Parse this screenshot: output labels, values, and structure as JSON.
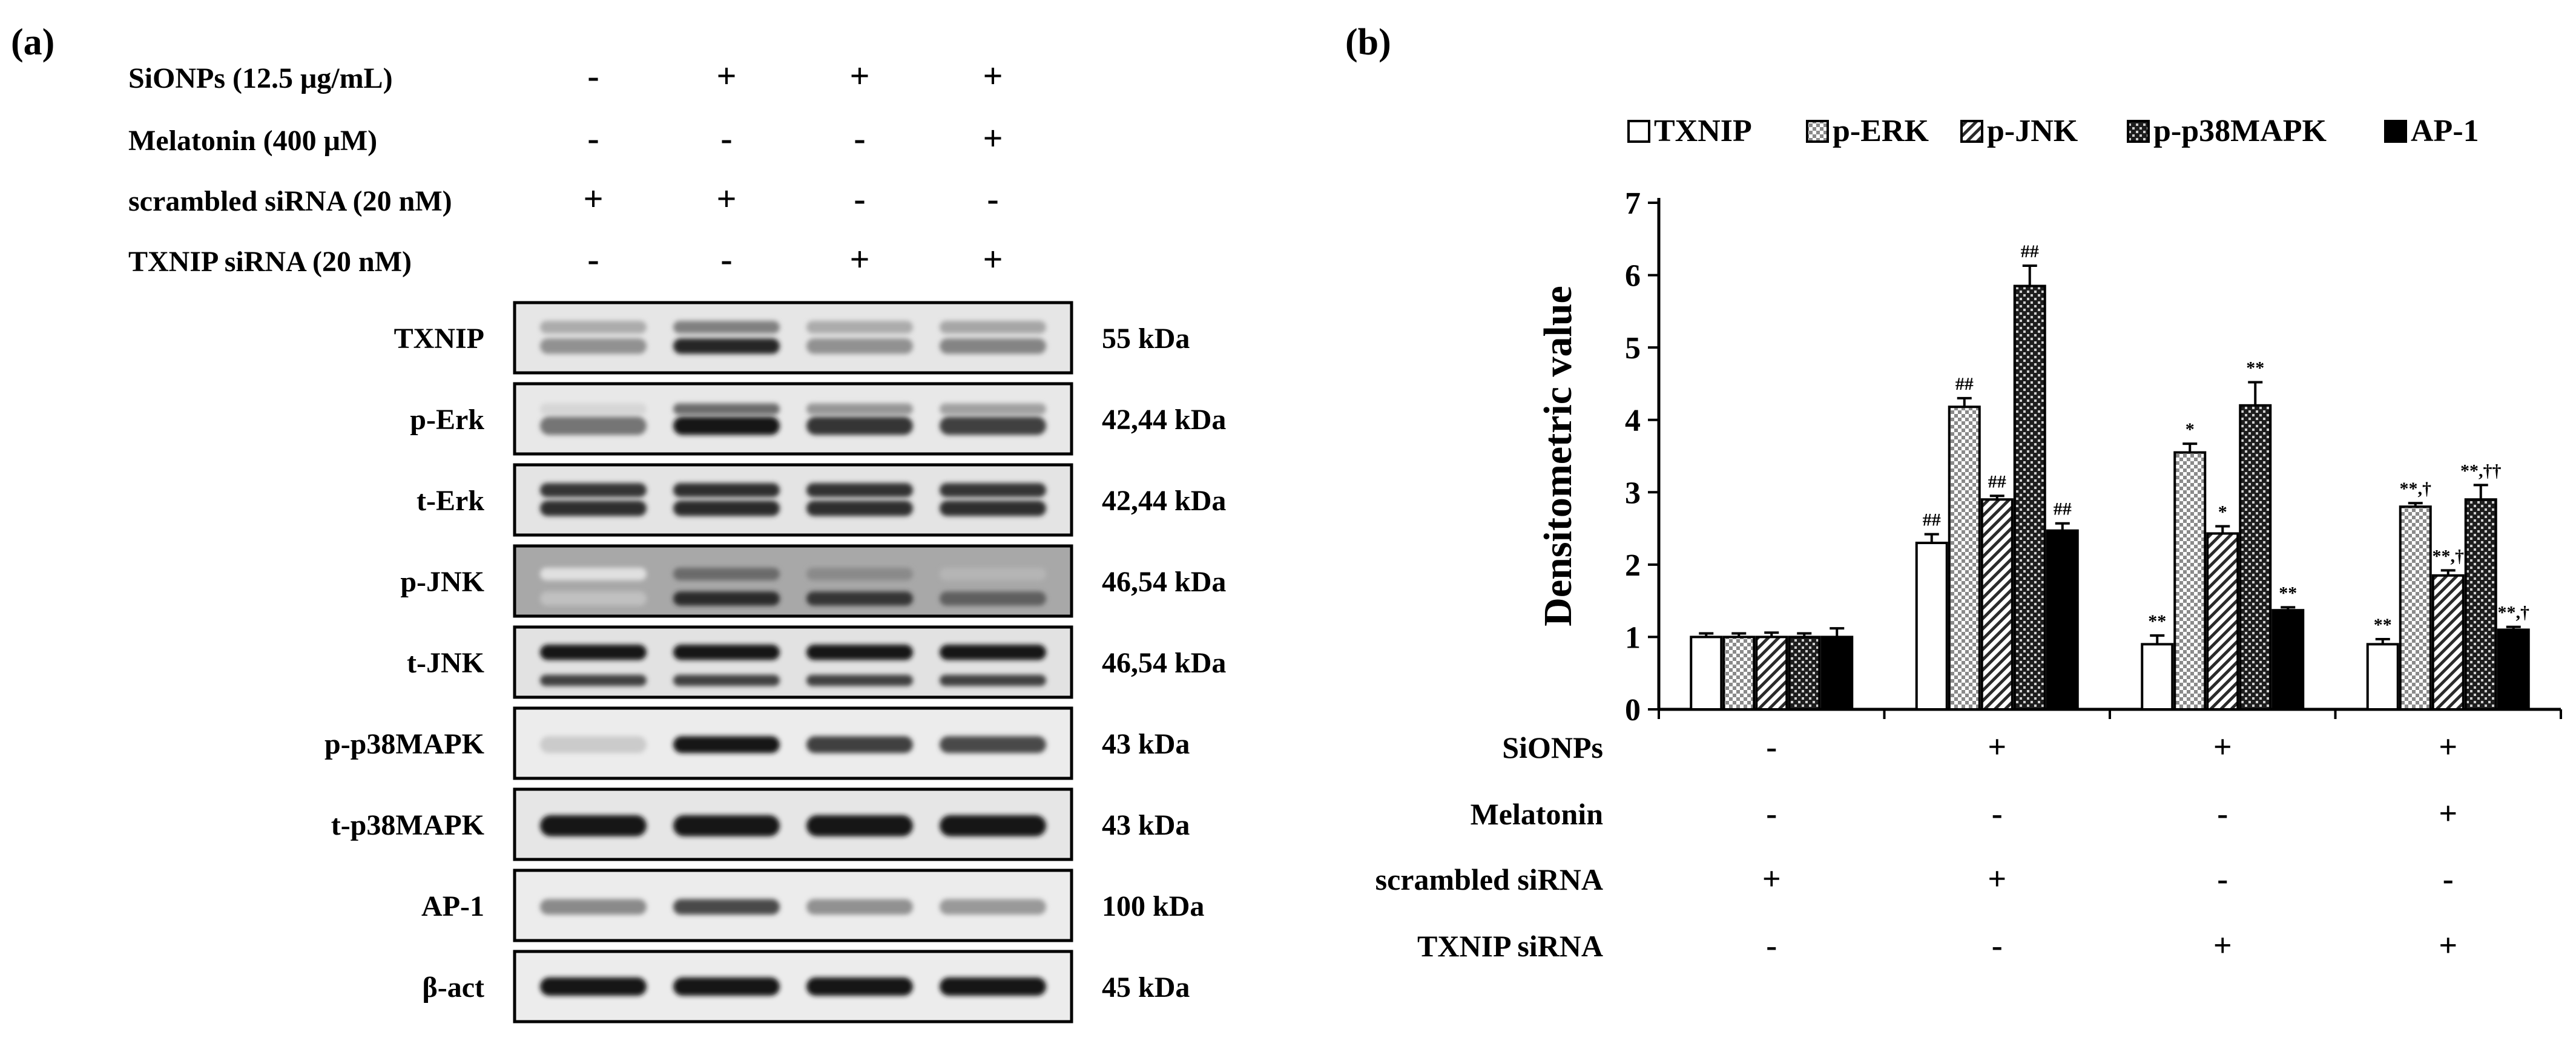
{
  "panel_a": {
    "label": "(a)",
    "conditions": [
      {
        "name": "SiONPs (12.5 μg/mL)",
        "values": [
          "-",
          "+",
          "+",
          "+"
        ]
      },
      {
        "name": "Melatonin (400 μM)",
        "values": [
          "-",
          "-",
          "-",
          "+"
        ]
      },
      {
        "name": "scrambled siRNA (20 nM)",
        "values": [
          "+",
          "+",
          "-",
          "-"
        ]
      },
      {
        "name": "TXNIP siRNA (20 nM)",
        "values": [
          "-",
          "-",
          "+",
          "+"
        ]
      }
    ],
    "blots": [
      {
        "name": "TXNIP",
        "size": "55 kDa",
        "bg": "#e6e6e6",
        "bands": [
          {
            "y": 0.35,
            "i": [
              0.3,
              0.5,
              0.3,
              0.32
            ],
            "w": 0.18
          },
          {
            "y": 0.62,
            "i": [
              0.42,
              0.92,
              0.42,
              0.48
            ],
            "w": 0.22
          }
        ]
      },
      {
        "name": "p-Erk",
        "size": "42,44 kDa",
        "bg": "#e8e8e8",
        "bands": [
          {
            "y": 0.36,
            "i": [
              0.1,
              0.6,
              0.4,
              0.35
            ],
            "w": 0.16
          },
          {
            "y": 0.6,
            "i": [
              0.55,
              1.0,
              0.85,
              0.8
            ],
            "w": 0.26
          }
        ]
      },
      {
        "name": "t-Erk",
        "size": "42,44 kDa",
        "bg": "#e4e4e4",
        "bands": [
          {
            "y": 0.36,
            "i": [
              0.85,
              0.88,
              0.86,
              0.85
            ],
            "w": 0.2
          },
          {
            "y": 0.62,
            "i": [
              0.88,
              0.9,
              0.88,
              0.88
            ],
            "w": 0.22
          }
        ]
      },
      {
        "name": "p-JNK",
        "size": "46,54 kDa",
        "bg": "#a8a8a8",
        "bands": [
          {
            "y": 0.4,
            "i": [
              0.05,
              0.6,
              0.45,
              0.25
            ],
            "w": 0.18
          },
          {
            "y": 0.75,
            "i": [
              0.2,
              0.9,
              0.85,
              0.65
            ],
            "w": 0.2
          }
        ]
      },
      {
        "name": "t-JNK",
        "size": "46,54 kDa",
        "bg": "#e2e2e2",
        "bands": [
          {
            "y": 0.36,
            "i": [
              1.0,
              1.0,
              1.0,
              1.0
            ],
            "w": 0.22
          },
          {
            "y": 0.76,
            "i": [
              0.8,
              0.8,
              0.8,
              0.8
            ],
            "w": 0.16
          }
        ]
      },
      {
        "name": "p-p38MAPK",
        "size": "43 kDa",
        "bg": "#ececec",
        "bands": [
          {
            "y": 0.52,
            "i": [
              0.15,
              1.0,
              0.8,
              0.75
            ],
            "w": 0.24
          }
        ]
      },
      {
        "name": "t-p38MAPK",
        "size": "43 kDa",
        "bg": "#e6e6e6",
        "bands": [
          {
            "y": 0.52,
            "i": [
              1.0,
              1.0,
              1.0,
              1.0
            ],
            "w": 0.3
          }
        ]
      },
      {
        "name": "AP-1",
        "size": "100 kDa",
        "bg": "#ececec",
        "bands": [
          {
            "y": 0.52,
            "i": [
              0.45,
              0.75,
              0.42,
              0.38
            ],
            "w": 0.22
          }
        ]
      },
      {
        "name": "β-act",
        "size": "45 kDa",
        "bg": "#ececec",
        "bands": [
          {
            "y": 0.5,
            "i": [
              1.0,
              1.0,
              1.0,
              1.0
            ],
            "w": 0.26
          }
        ]
      }
    ]
  },
  "chart_data": {
    "label": "(b)",
    "type": "bar",
    "ylabel": "Densitometric value",
    "ylim": [
      0,
      7
    ],
    "yticks": [
      "0",
      "1",
      "2",
      "3",
      "4",
      "5",
      "6",
      "7"
    ],
    "legend_position": "top",
    "series": [
      {
        "name": "TXNIP",
        "pattern": "white",
        "values": [
          1.0,
          2.3,
          0.9,
          0.9
        ],
        "errors": [
          0.05,
          0.12,
          0.12,
          0.07
        ],
        "annotations": [
          "",
          "##",
          "**",
          "**"
        ]
      },
      {
        "name": "p-ERK",
        "pattern": "check",
        "values": [
          1.0,
          4.18,
          3.55,
          2.8
        ],
        "errors": [
          0.05,
          0.12,
          0.12,
          0.05
        ],
        "annotations": [
          "",
          "##",
          "*",
          "**,†"
        ]
      },
      {
        "name": "p-JNK",
        "pattern": "diag",
        "values": [
          1.0,
          2.9,
          2.43,
          1.85
        ],
        "errors": [
          0.06,
          0.05,
          0.1,
          0.07
        ],
        "annotations": [
          "",
          "##",
          "*",
          "**,†"
        ]
      },
      {
        "name": "p-p38MAPK",
        "pattern": "dark",
        "values": [
          1.0,
          5.85,
          4.2,
          2.9
        ],
        "errors": [
          0.05,
          0.28,
          0.32,
          0.2
        ],
        "annotations": [
          "",
          "##",
          "**",
          "**,††"
        ]
      },
      {
        "name": "AP-1",
        "pattern": "black",
        "values": [
          1.0,
          2.47,
          1.37,
          1.1
        ],
        "errors": [
          0.12,
          0.1,
          0.04,
          0.04
        ],
        "annotations": [
          "",
          "##",
          "**",
          "**,†"
        ]
      }
    ],
    "conditions": [
      {
        "name": "SiONPs",
        "values": [
          "-",
          "+",
          "+",
          "+"
        ]
      },
      {
        "name": "Melatonin",
        "values": [
          "-",
          "-",
          "-",
          "+"
        ]
      },
      {
        "name": "scrambled siRNA",
        "values": [
          "+",
          "+",
          "-",
          "-"
        ]
      },
      {
        "name": "TXNIP siRNA",
        "values": [
          "-",
          "-",
          "+",
          "+"
        ]
      }
    ]
  }
}
